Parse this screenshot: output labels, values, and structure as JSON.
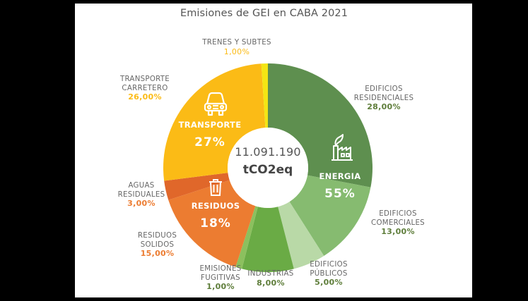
{
  "title": "Emisiones de GEI en CABA 2021",
  "center": {
    "total": "11.091.190",
    "unit": "tCO2eq"
  },
  "groups": [
    {
      "name": "ENERGIA",
      "percent": "55%",
      "icon": "factory-icon"
    },
    {
      "name": "TRANSPORTE",
      "percent": "27%",
      "icon": "car-icon"
    },
    {
      "name": "RESIDUOS",
      "percent": "18%",
      "icon": "trash-icon"
    }
  ],
  "labels": [
    {
      "lines": [
        "EDIFICIOS",
        "RESIDENCIALES"
      ],
      "pct": "28,00%"
    },
    {
      "lines": [
        "EDIFICIOS",
        "COMERCIALES"
      ],
      "pct": "13,00%"
    },
    {
      "lines": [
        "EDIFICIOS",
        "PÚBLICOS"
      ],
      "pct": "5,00%"
    },
    {
      "lines": [
        "INDUSTRIAS"
      ],
      "pct": "8,00%"
    },
    {
      "lines": [
        "EMISIONES",
        "FUGITIVAS"
      ],
      "pct": "1,00%"
    },
    {
      "lines": [
        "RESIDUOS",
        "SOLIDOS"
      ],
      "pct": "15,00%"
    },
    {
      "lines": [
        "AGUAS",
        "RESIDUALES"
      ],
      "pct": "3,00%"
    },
    {
      "lines": [
        "TRANSPORTE",
        "CARRETERO"
      ],
      "pct": "26,00%"
    },
    {
      "lines": [
        "TRENES Y SUBTES"
      ],
      "pct": "1,00%"
    }
  ],
  "chart_data": {
    "type": "pie",
    "subtype": "donut",
    "title": "Emisiones de GEI en CABA 2021",
    "center_text": "11.091.190 tCO2eq",
    "categories": [
      "Edificios Residenciales",
      "Edificios Comerciales",
      "Edificios Públicos",
      "Industrias",
      "Emisiones Fugitivas",
      "Residuos Solidos",
      "Aguas Residuales",
      "Transporte Carretero",
      "Trenes y Subtes"
    ],
    "values": [
      28,
      13,
      5,
      8,
      1,
      15,
      3,
      26,
      1
    ],
    "colors": [
      "#5e8f4f",
      "#86bb70",
      "#b9d9a7",
      "#6aab45",
      "#8cc05e",
      "#ec7c31",
      "#e0672a",
      "#fbbb16",
      "#f3e514"
    ],
    "label_colors": [
      "#5e7d3a",
      "#5e7d3a",
      "#5e7d3a",
      "#5e7d3a",
      "#5e7d3a",
      "#ec7c31",
      "#ec7c31",
      "#fbbb16",
      "#fbbb16"
    ],
    "groups": [
      {
        "name": "Energia",
        "value": 55,
        "members": [
          "Edificios Residenciales",
          "Edificios Comerciales",
          "Edificios Públicos",
          "Industrias",
          "Emisiones Fugitivas"
        ]
      },
      {
        "name": "Residuos",
        "value": 18,
        "members": [
          "Residuos Solidos",
          "Aguas Residuales"
        ]
      },
      {
        "name": "Transporte",
        "value": 27,
        "members": [
          "Transporte Carretero",
          "Trenes y Subtes"
        ]
      }
    ],
    "unit": "%",
    "start_angle": "12 o'clock, clockwise"
  }
}
